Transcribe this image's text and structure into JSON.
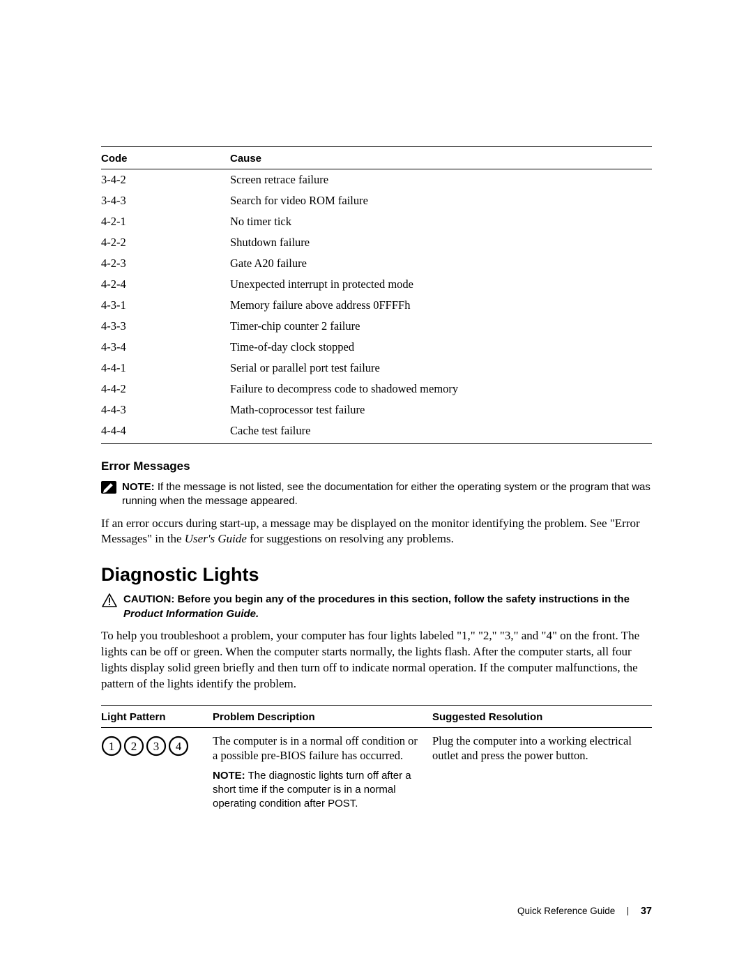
{
  "codes_table": {
    "headers": {
      "code": "Code",
      "cause": "Cause"
    },
    "rows": [
      {
        "code": "3-4-2",
        "cause": "Screen retrace failure"
      },
      {
        "code": "3-4-3",
        "cause": "Search for video ROM failure"
      },
      {
        "code": "4-2-1",
        "cause": "No timer tick"
      },
      {
        "code": "4-2-2",
        "cause": "Shutdown failure"
      },
      {
        "code": "4-2-3",
        "cause": "Gate A20 failure"
      },
      {
        "code": "4-2-4",
        "cause": "Unexpected interrupt in protected mode"
      },
      {
        "code": "4-3-1",
        "cause": "Memory failure above address 0FFFFh"
      },
      {
        "code": "4-3-3",
        "cause": "Timer-chip counter 2 failure"
      },
      {
        "code": "4-3-4",
        "cause": "Time-of-day clock stopped"
      },
      {
        "code": "4-4-1",
        "cause": "Serial or parallel port test failure"
      },
      {
        "code": "4-4-2",
        "cause": "Failure to decompress code to shadowed memory"
      },
      {
        "code": "4-4-3",
        "cause": "Math-coprocessor test failure"
      },
      {
        "code": "4-4-4",
        "cause": "Cache test failure"
      }
    ]
  },
  "error_messages": {
    "heading": "Error Messages",
    "note_label": "NOTE:",
    "note_text": " If the message is not listed, see the documentation for either the operating system or the program that was running when the message appeared.",
    "para_before": "If an error occurs during start-up, a message may be displayed on the monitor identifying the problem. See \"Error Messages\" in the ",
    "para_italic": "User's Guide",
    "para_after": " for suggestions on resolving any problems."
  },
  "diagnostic_lights": {
    "heading": "Diagnostic Lights",
    "caution_label": "CAUTION: ",
    "caution_text": "Before you begin any of the procedures in this section, follow the safety instructions in the ",
    "caution_italic": "Product Information Guide.",
    "intro": "To help you troubleshoot a problem, your computer has four lights labeled \"1,\" \"2,\" \"3,\" and \"4\" on the front. The lights can be off or green. When the computer starts normally, the lights flash. After the computer starts, all four lights display solid green briefly and then turn off to indicate normal operation. If the computer malfunctions, the pattern of the lights identify the problem.",
    "table": {
      "headers": {
        "light_pattern": "Light Pattern",
        "problem_desc": "Problem Description",
        "resolution": "Suggested Resolution"
      },
      "row1": {
        "lights": [
          "1",
          "2",
          "3",
          "4"
        ],
        "light_states": [
          "off",
          "off",
          "off",
          "off"
        ],
        "light_stroke": "#000000",
        "light_fill": "#ffffff",
        "problem": "The computer is in a normal off condition or a possible pre-BIOS failure has occurred.",
        "note_label": "NOTE:",
        "note_text": " The diagnostic lights turn off after a short time if the computer is in a normal operating condition after POST.",
        "resolution": "Plug the computer into a working electrical outlet and press the power button."
      }
    }
  },
  "note_icon": {
    "fill": "#000000",
    "pencil": "#ffffff"
  },
  "caution_icon": {
    "stroke": "#000000"
  },
  "footer": {
    "title": "Quick Reference Guide",
    "page": "37"
  }
}
